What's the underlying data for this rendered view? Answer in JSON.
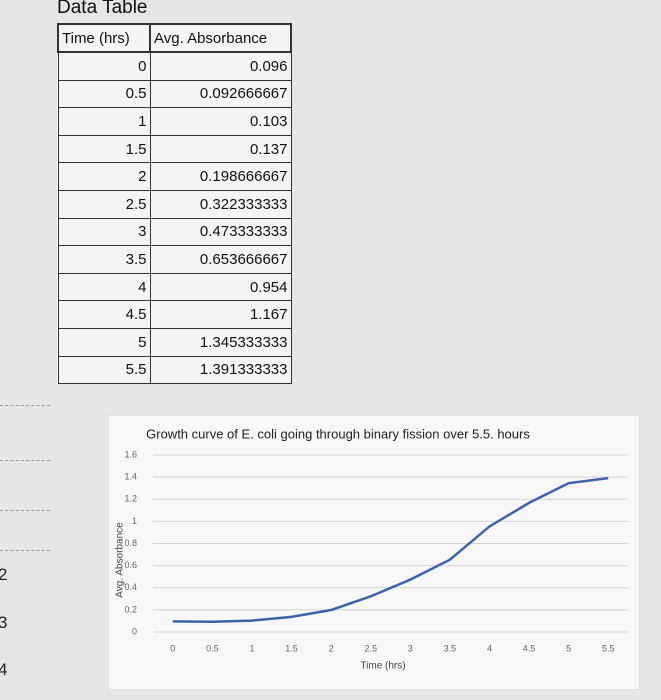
{
  "table": {
    "caption": "Data Table",
    "header": [
      "Time (hrs)",
      "Avg. Absorbance"
    ],
    "rows": [
      [
        0,
        0.096
      ],
      [
        0.5,
        0.092666667
      ],
      [
        1,
        0.103
      ],
      [
        1.5,
        0.137
      ],
      [
        2,
        0.198666667
      ],
      [
        2.5,
        0.322333333
      ],
      [
        3,
        0.473333333
      ],
      [
        3.5,
        0.653666667
      ],
      [
        4,
        0.954
      ],
      [
        4.5,
        1.167
      ],
      [
        5,
        1.345333333
      ],
      [
        5.5,
        1.391333333
      ]
    ]
  },
  "row_numbers": [
    "2",
    "3",
    "4"
  ],
  "chart_data": {
    "type": "line",
    "title": "Growth curve of E. coli going through binary fission over 5.5. hours",
    "x_label": "Time (hrs)",
    "y_label": "Avg. Absorbance",
    "categories": [
      "0",
      "0.5",
      "1",
      "1.5",
      "2",
      "2.5",
      "3",
      "3.5",
      "4",
      "4.5",
      "5",
      "5.5"
    ],
    "series": [
      {
        "name": "Avg. Absorbance",
        "color": "#3d62a8",
        "values": [
          0.096,
          0.092666667,
          0.103,
          0.137,
          0.198666667,
          0.322333333,
          0.473333333,
          0.653666667,
          0.954,
          1.167,
          1.345333333,
          1.391333333
        ]
      }
    ],
    "ylim": [
      0,
      1.6
    ],
    "yticks": [
      0,
      0.2,
      0.4,
      0.6,
      0.8,
      1,
      1.2,
      1.4,
      1.6
    ],
    "grid": true
  }
}
